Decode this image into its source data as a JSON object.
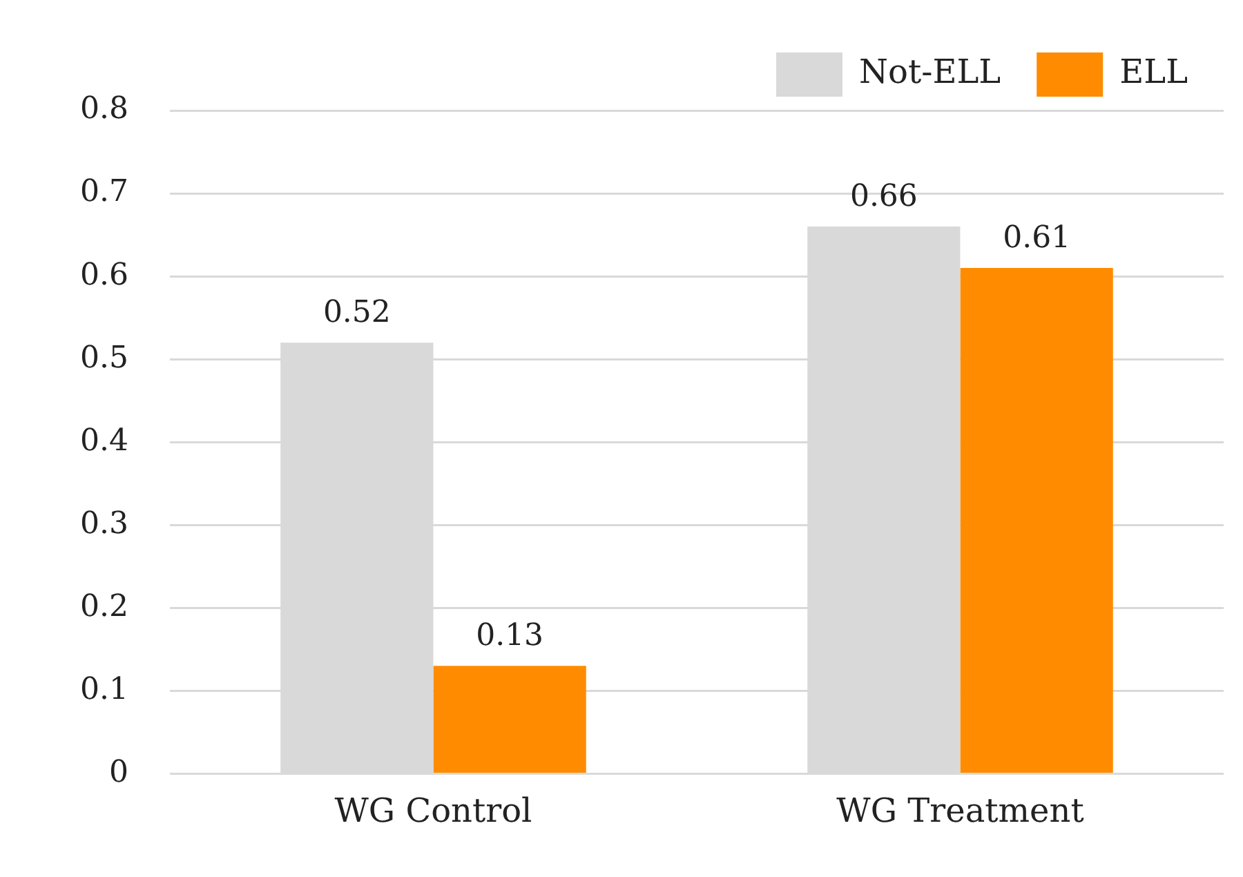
{
  "chart_data": {
    "type": "bar",
    "categories": [
      "WG Control",
      "WG Treatment"
    ],
    "series": [
      {
        "name": "Not-ELL",
        "color": "#d9d9d9",
        "values": [
          0.52,
          0.66
        ]
      },
      {
        "name": "ELL",
        "color": "#ff8c00",
        "values": [
          0.13,
          0.61
        ]
      }
    ],
    "ylim": [
      0,
      0.8
    ],
    "yticks": [
      0,
      0.1,
      0.2,
      0.3,
      0.4,
      0.5,
      0.6,
      0.7,
      0.8
    ],
    "grid": "y",
    "legend": "top right",
    "data_labels": true
  }
}
